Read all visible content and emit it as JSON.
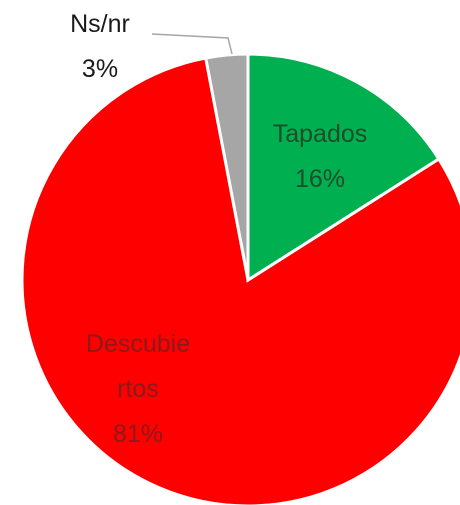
{
  "chart_data": {
    "type": "pie",
    "categories": [
      "Tapados",
      "Descubiertos",
      "Ns/nr"
    ],
    "values": [
      16,
      81,
      3
    ],
    "value_labels": [
      "16%",
      "81%",
      "3%"
    ],
    "colors": [
      "#00b050",
      "#ff0000",
      "#a6a6a6"
    ]
  }
}
